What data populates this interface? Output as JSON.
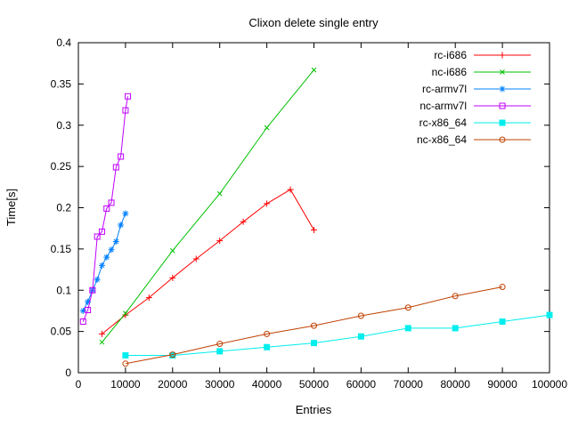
{
  "chart_data": {
    "type": "line",
    "title": "Clixon delete single entry",
    "xlabel": "Entries",
    "ylabel": "Time[s]",
    "xlim": [
      0,
      100000
    ],
    "ylim": [
      0,
      0.4
    ],
    "grid": false,
    "legend_position": "top-right-inside",
    "xticks": {
      "values": [
        0,
        10000,
        20000,
        30000,
        40000,
        50000,
        60000,
        70000,
        80000,
        90000,
        100000
      ],
      "labels": [
        "0",
        "10000",
        "20000",
        "30000",
        "40000",
        "50000",
        "60000",
        "70000",
        "80000",
        "90000",
        "100000"
      ]
    },
    "yticks": {
      "values": [
        0,
        0.05,
        0.1,
        0.15,
        0.2,
        0.25,
        0.3,
        0.35,
        0.4
      ],
      "labels": [
        "0",
        "0.05",
        "0.1",
        "0.15",
        "0.2",
        "0.25",
        "0.3",
        "0.35",
        "0.4"
      ]
    },
    "series": [
      {
        "name": "rc-i686",
        "color": "#ff0000",
        "marker": "plus",
        "points": [
          [
            5000,
            0.047
          ],
          [
            10000,
            0.07
          ],
          [
            15000,
            0.091
          ],
          [
            20000,
            0.115
          ],
          [
            25000,
            0.138
          ],
          [
            30000,
            0.16
          ],
          [
            35000,
            0.183
          ],
          [
            40000,
            0.205
          ],
          [
            45000,
            0.222
          ],
          [
            50000,
            0.173
          ]
        ]
      },
      {
        "name": "nc-i686",
        "color": "#00c000",
        "marker": "cross",
        "points": [
          [
            5000,
            0.037
          ],
          [
            10000,
            0.072
          ],
          [
            20000,
            0.148
          ],
          [
            30000,
            0.217
          ],
          [
            40000,
            0.297
          ],
          [
            50000,
            0.367
          ]
        ]
      },
      {
        "name": "rc-armv7l",
        "color": "#0080ff",
        "marker": "asterisk",
        "points": [
          [
            1000,
            0.075
          ],
          [
            2000,
            0.086
          ],
          [
            3000,
            0.1
          ],
          [
            4000,
            0.113
          ],
          [
            5000,
            0.13
          ],
          [
            6000,
            0.14
          ],
          [
            7000,
            0.149
          ],
          [
            8000,
            0.159
          ],
          [
            9000,
            0.179
          ],
          [
            10000,
            0.193
          ]
        ]
      },
      {
        "name": "nc-armv7l",
        "color": "#c000ff",
        "marker": "square-open",
        "points": [
          [
            1000,
            0.062
          ],
          [
            2000,
            0.076
          ],
          [
            3000,
            0.1
          ],
          [
            4000,
            0.165
          ],
          [
            5000,
            0.171
          ],
          [
            6000,
            0.199
          ],
          [
            7000,
            0.206
          ],
          [
            8000,
            0.249
          ],
          [
            9000,
            0.262
          ],
          [
            10000,
            0.318
          ],
          [
            10500,
            0.335
          ]
        ]
      },
      {
        "name": "rc-x86_64",
        "color": "#00eeee",
        "marker": "square-filled",
        "points": [
          [
            10000,
            0.021
          ],
          [
            20000,
            0.021
          ],
          [
            30000,
            0.026
          ],
          [
            40000,
            0.031
          ],
          [
            50000,
            0.036
          ],
          [
            60000,
            0.044
          ],
          [
            70000,
            0.054
          ],
          [
            80000,
            0.054
          ],
          [
            90000,
            0.062
          ],
          [
            100000,
            0.07
          ]
        ]
      },
      {
        "name": "nc-x86_64",
        "color": "#c04000",
        "marker": "circle-open",
        "points": [
          [
            10000,
            0.011
          ],
          [
            20000,
            0.022
          ],
          [
            30000,
            0.035
          ],
          [
            40000,
            0.047
          ],
          [
            50000,
            0.057
          ],
          [
            60000,
            0.069
          ],
          [
            70000,
            0.079
          ],
          [
            80000,
            0.093
          ],
          [
            90000,
            0.104
          ]
        ]
      }
    ]
  }
}
